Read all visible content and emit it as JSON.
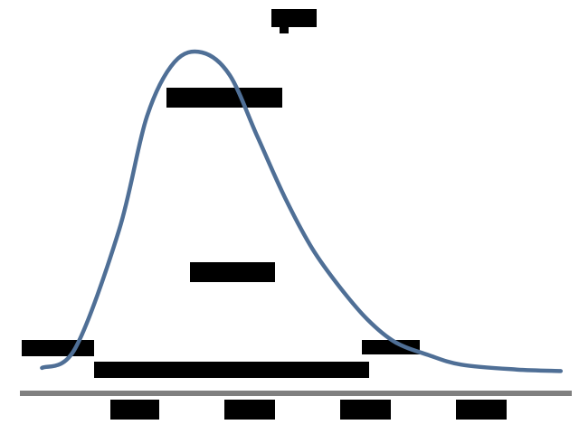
{
  "chart_data": {
    "type": "line",
    "title": "",
    "xlabel": "",
    "ylabel": "",
    "grid": false,
    "legend": "none",
    "tick_labels": [
      "",
      "",
      "",
      ""
    ],
    "annotations": [
      "",
      "",
      "",
      "",
      "",
      ""
    ],
    "xlim": [
      0,
      1
    ],
    "ylim": [
      0,
      1
    ],
    "series": [
      {
        "values": [
          [
            0.04,
            0.02
          ],
          [
            0.1,
            0.08
          ],
          [
            0.18,
            0.45
          ],
          [
            0.23,
            0.8
          ],
          [
            0.28,
            0.97
          ],
          [
            0.33,
            1.0
          ],
          [
            0.38,
            0.93
          ],
          [
            0.43,
            0.74
          ],
          [
            0.48,
            0.55
          ],
          [
            0.53,
            0.39
          ],
          [
            0.58,
            0.27
          ],
          [
            0.63,
            0.17
          ],
          [
            0.68,
            0.1
          ],
          [
            0.74,
            0.06
          ],
          [
            0.8,
            0.03
          ],
          [
            0.9,
            0.015
          ],
          [
            0.98,
            0.01
          ]
        ]
      }
    ],
    "colors": {
      "curve": "#4f6f96",
      "axis": "#808080",
      "redaction": "#000000"
    }
  }
}
